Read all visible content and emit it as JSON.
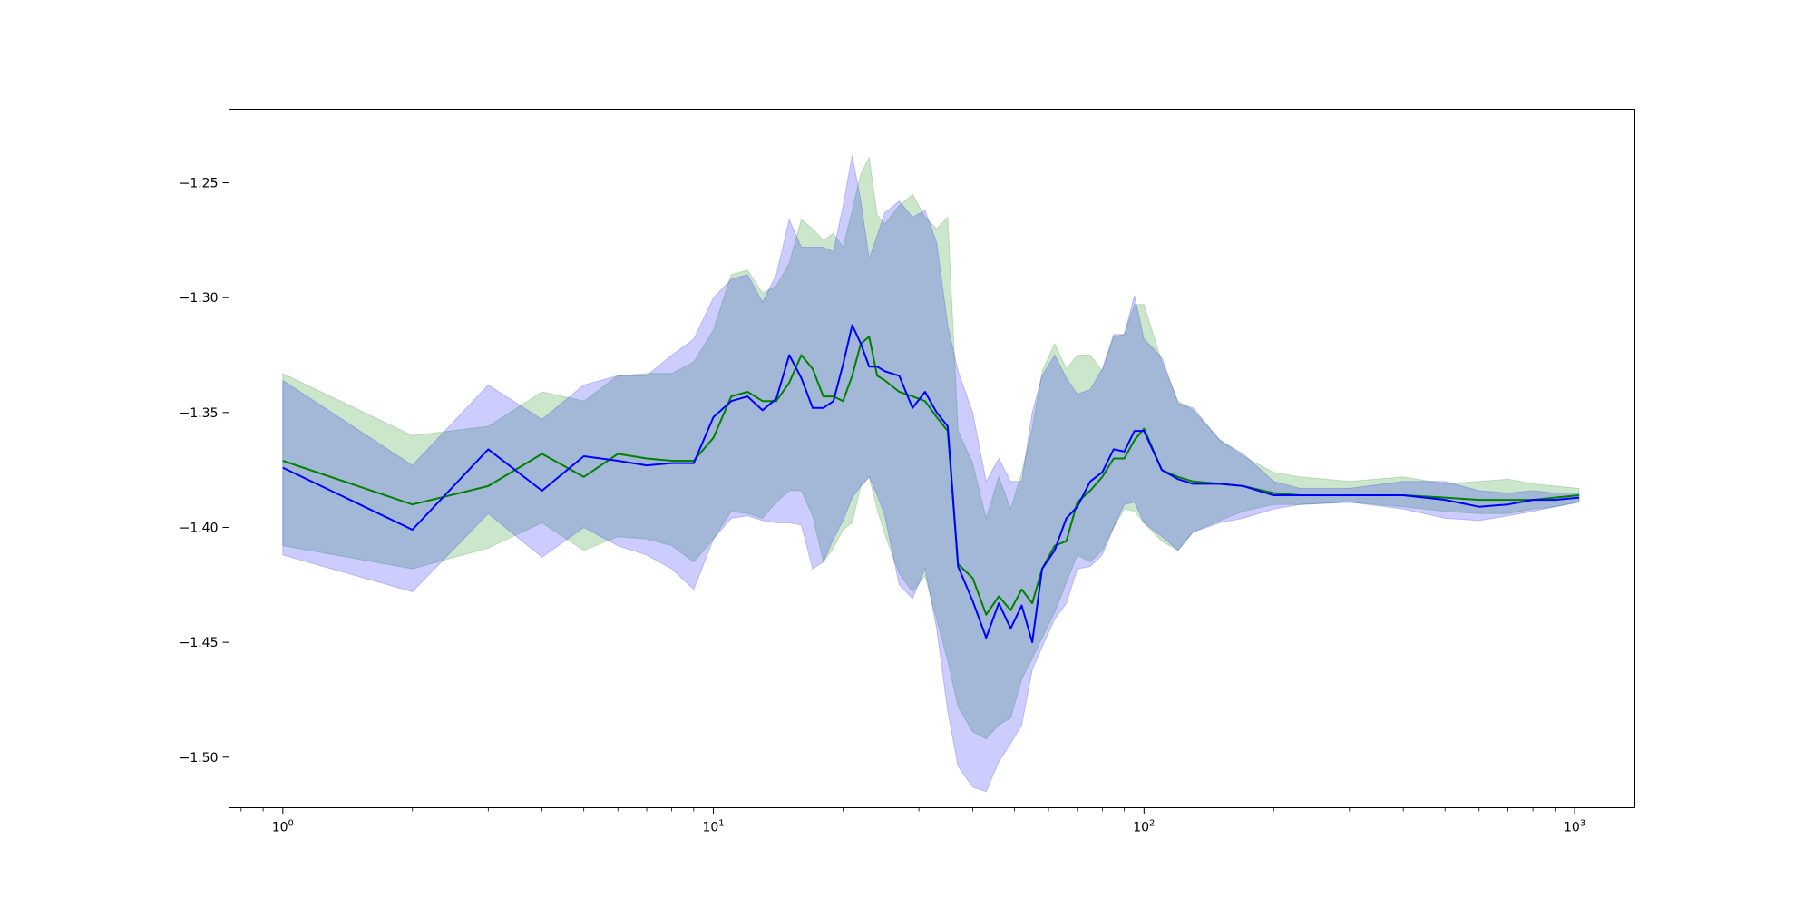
{
  "chart_data": {
    "type": "line",
    "xscale": "log",
    "xlim": [
      0.75,
      1380
    ],
    "ylim": [
      -1.522,
      -1.218
    ],
    "grid": false,
    "x_ticks": [
      {
        "value": 1,
        "base": "10",
        "exp": "0"
      },
      {
        "value": 10,
        "base": "10",
        "exp": "1"
      },
      {
        "value": 100,
        "base": "10",
        "exp": "2"
      },
      {
        "value": 1000,
        "base": "10",
        "exp": "3"
      }
    ],
    "y_ticks": [
      {
        "value": -1.25,
        "label": "−1.25"
      },
      {
        "value": -1.3,
        "label": "−1.30"
      },
      {
        "value": -1.35,
        "label": "−1.35"
      },
      {
        "value": -1.4,
        "label": "−1.40"
      },
      {
        "value": -1.45,
        "label": "−1.45"
      },
      {
        "value": -1.5,
        "label": "−1.50"
      }
    ],
    "series": [
      {
        "color": "#008000",
        "band_color": "#008000",
        "band_opacity": 0.2,
        "x": [
          1,
          2,
          3,
          4,
          5,
          6,
          7,
          8,
          9,
          10,
          11,
          12,
          13,
          14,
          15,
          16,
          17,
          18,
          19,
          20,
          21,
          22,
          23,
          24,
          25,
          27,
          29,
          31,
          33,
          35,
          37,
          40,
          43,
          46,
          49,
          52,
          55,
          58,
          62,
          66,
          70,
          75,
          80,
          85,
          90,
          95,
          100,
          110,
          120,
          130,
          150,
          170,
          200,
          230,
          300,
          400,
          500,
          600,
          700,
          800,
          900,
          1024
        ],
        "y": [
          -1.371,
          -1.39,
          -1.382,
          -1.368,
          -1.378,
          -1.368,
          -1.37,
          -1.371,
          -1.371,
          -1.361,
          -1.343,
          -1.341,
          -1.345,
          -1.345,
          -1.337,
          -1.325,
          -1.331,
          -1.343,
          -1.343,
          -1.345,
          -1.334,
          -1.32,
          -1.317,
          -1.334,
          -1.336,
          -1.341,
          -1.343,
          -1.345,
          -1.352,
          -1.358,
          -1.416,
          -1.422,
          -1.438,
          -1.43,
          -1.436,
          -1.427,
          -1.433,
          -1.418,
          -1.408,
          -1.406,
          -1.389,
          -1.384,
          -1.378,
          -1.37,
          -1.37,
          -1.362,
          -1.357,
          -1.375,
          -1.378,
          -1.38,
          -1.381,
          -1.382,
          -1.385,
          -1.386,
          -1.386,
          -1.386,
          -1.387,
          -1.388,
          -1.388,
          -1.388,
          -1.387,
          -1.386
        ],
        "lower": [
          -1.408,
          -1.418,
          -1.409,
          -1.398,
          -1.41,
          -1.404,
          -1.405,
          -1.408,
          -1.415,
          -1.405,
          -1.393,
          -1.394,
          -1.396,
          -1.389,
          -1.384,
          -1.384,
          -1.395,
          -1.415,
          -1.409,
          -1.401,
          -1.398,
          -1.382,
          -1.378,
          -1.392,
          -1.403,
          -1.42,
          -1.428,
          -1.421,
          -1.44,
          -1.458,
          -1.478,
          -1.489,
          -1.492,
          -1.486,
          -1.483,
          -1.466,
          -1.457,
          -1.448,
          -1.437,
          -1.424,
          -1.412,
          -1.415,
          -1.41,
          -1.4,
          -1.392,
          -1.393,
          -1.398,
          -1.406,
          -1.41,
          -1.402,
          -1.397,
          -1.393,
          -1.39,
          -1.39,
          -1.389,
          -1.391,
          -1.393,
          -1.394,
          -1.394,
          -1.392,
          -1.391,
          -1.389
        ],
        "upper": [
          -1.333,
          -1.36,
          -1.356,
          -1.341,
          -1.345,
          -1.334,
          -1.333,
          -1.333,
          -1.328,
          -1.314,
          -1.29,
          -1.288,
          -1.298,
          -1.295,
          -1.285,
          -1.266,
          -1.27,
          -1.275,
          -1.272,
          -1.278,
          -1.262,
          -1.246,
          -1.239,
          -1.264,
          -1.268,
          -1.26,
          -1.255,
          -1.265,
          -1.27,
          -1.265,
          -1.358,
          -1.372,
          -1.396,
          -1.378,
          -1.392,
          -1.376,
          -1.357,
          -1.332,
          -1.32,
          -1.331,
          -1.325,
          -1.325,
          -1.332,
          -1.317,
          -1.316,
          -1.303,
          -1.303,
          -1.328,
          -1.345,
          -1.349,
          -1.362,
          -1.369,
          -1.376,
          -1.378,
          -1.38,
          -1.378,
          -1.381,
          -1.38,
          -1.379,
          -1.381,
          -1.382,
          -1.383
        ]
      },
      {
        "color": "#0000ff",
        "band_color": "#0000ff",
        "band_opacity": 0.2,
        "x": [
          1,
          2,
          3,
          4,
          5,
          6,
          7,
          8,
          9,
          10,
          11,
          12,
          13,
          14,
          15,
          16,
          17,
          18,
          19,
          20,
          21,
          22,
          23,
          24,
          25,
          27,
          29,
          31,
          33,
          35,
          37,
          40,
          43,
          46,
          49,
          52,
          55,
          58,
          62,
          66,
          70,
          75,
          80,
          85,
          90,
          95,
          100,
          110,
          120,
          130,
          150,
          170,
          200,
          230,
          300,
          400,
          500,
          600,
          700,
          800,
          900,
          1024
        ],
        "y": [
          -1.374,
          -1.401,
          -1.366,
          -1.384,
          -1.369,
          -1.371,
          -1.373,
          -1.372,
          -1.372,
          -1.352,
          -1.345,
          -1.343,
          -1.349,
          -1.344,
          -1.325,
          -1.335,
          -1.348,
          -1.348,
          -1.345,
          -1.329,
          -1.312,
          -1.32,
          -1.33,
          -1.33,
          -1.332,
          -1.334,
          -1.348,
          -1.341,
          -1.35,
          -1.356,
          -1.417,
          -1.432,
          -1.448,
          -1.433,
          -1.444,
          -1.434,
          -1.45,
          -1.418,
          -1.41,
          -1.396,
          -1.391,
          -1.38,
          -1.376,
          -1.366,
          -1.367,
          -1.358,
          -1.358,
          -1.375,
          -1.379,
          -1.381,
          -1.381,
          -1.382,
          -1.386,
          -1.386,
          -1.386,
          -1.386,
          -1.388,
          -1.391,
          -1.39,
          -1.388,
          -1.388,
          -1.387
        ],
        "lower": [
          -1.412,
          -1.428,
          -1.394,
          -1.413,
          -1.4,
          -1.408,
          -1.412,
          -1.418,
          -1.427,
          -1.405,
          -1.396,
          -1.395,
          -1.397,
          -1.398,
          -1.398,
          -1.399,
          -1.418,
          -1.415,
          -1.405,
          -1.397,
          -1.387,
          -1.382,
          -1.378,
          -1.386,
          -1.395,
          -1.425,
          -1.431,
          -1.418,
          -1.444,
          -1.48,
          -1.504,
          -1.513,
          -1.515,
          -1.502,
          -1.494,
          -1.486,
          -1.462,
          -1.452,
          -1.44,
          -1.433,
          -1.418,
          -1.417,
          -1.412,
          -1.4,
          -1.39,
          -1.389,
          -1.398,
          -1.404,
          -1.41,
          -1.402,
          -1.398,
          -1.396,
          -1.392,
          -1.39,
          -1.389,
          -1.392,
          -1.396,
          -1.397,
          -1.395,
          -1.393,
          -1.391,
          -1.389
        ],
        "upper": [
          -1.336,
          -1.373,
          -1.338,
          -1.353,
          -1.338,
          -1.334,
          -1.334,
          -1.325,
          -1.318,
          -1.3,
          -1.292,
          -1.29,
          -1.302,
          -1.29,
          -1.266,
          -1.278,
          -1.278,
          -1.278,
          -1.28,
          -1.26,
          -1.238,
          -1.258,
          -1.283,
          -1.273,
          -1.263,
          -1.258,
          -1.265,
          -1.262,
          -1.276,
          -1.312,
          -1.332,
          -1.35,
          -1.38,
          -1.37,
          -1.38,
          -1.38,
          -1.35,
          -1.334,
          -1.325,
          -1.335,
          -1.342,
          -1.34,
          -1.331,
          -1.316,
          -1.316,
          -1.299,
          -1.318,
          -1.326,
          -1.346,
          -1.348,
          -1.362,
          -1.368,
          -1.38,
          -1.383,
          -1.383,
          -1.38,
          -1.38,
          -1.384,
          -1.385,
          -1.384,
          -1.385,
          -1.385
        ]
      }
    ]
  }
}
